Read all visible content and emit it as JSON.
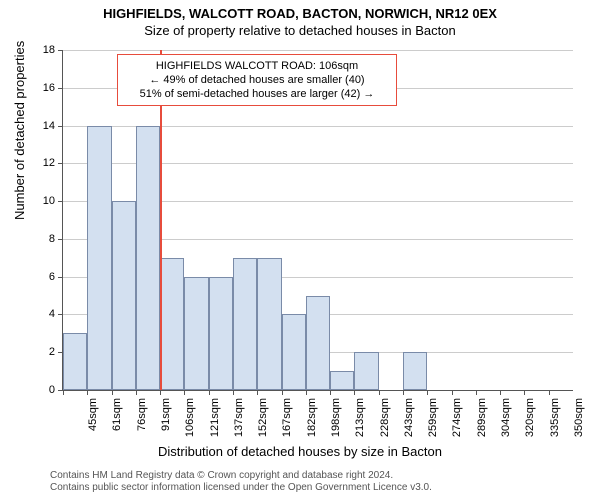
{
  "chart": {
    "type": "histogram",
    "title_main": "HIGHFIELDS, WALCOTT ROAD, BACTON, NORWICH, NR12 0EX",
    "title_sub": "Size of property relative to detached houses in Bacton",
    "title_fontsize": 13,
    "y_axis": {
      "label": "Number of detached properties",
      "min": 0,
      "max": 18,
      "step": 2,
      "label_fontsize": 13,
      "tick_fontsize": 11
    },
    "x_axis": {
      "label": "Distribution of detached houses by size in Bacton",
      "categories": [
        "45sqm",
        "61sqm",
        "76sqm",
        "91sqm",
        "106sqm",
        "121sqm",
        "137sqm",
        "152sqm",
        "167sqm",
        "182sqm",
        "198sqm",
        "213sqm",
        "228sqm",
        "243sqm",
        "259sqm",
        "274sqm",
        "289sqm",
        "304sqm",
        "320sqm",
        "335sqm",
        "350sqm"
      ],
      "label_fontsize": 13,
      "tick_fontsize": 11
    },
    "bar_values": [
      3,
      14,
      10,
      14,
      7,
      6,
      6,
      7,
      7,
      4,
      5,
      1,
      2,
      0,
      2,
      0,
      0,
      0,
      0,
      0,
      0
    ],
    "bar_color": "#d3e0f0",
    "bar_border_color": "#7a8ba8",
    "grid_color": "#cccccc",
    "background_color": "#ffffff",
    "marker": {
      "position_index": 4,
      "color": "#e74c3c",
      "lines": [
        "HIGHFIELDS WALCOTT ROAD: 106sqm",
        "← 49% of detached houses are smaller (40)",
        "51% of semi-detached houses are larger (42) →"
      ]
    }
  },
  "footer": {
    "line1": "Contains HM Land Registry data © Crown copyright and database right 2024.",
    "line2": "Contains public sector information licensed under the Open Government Licence v3.0."
  }
}
